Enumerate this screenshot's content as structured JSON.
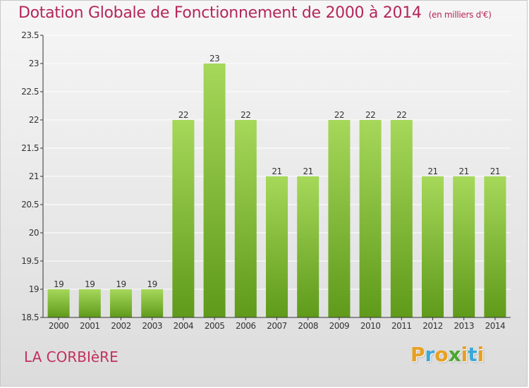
{
  "title": "Dotation Globale de Fonctionnement de 2000 à 2014",
  "subtitle": "(en milliers d'€)",
  "commune": "LA CORBIèRE",
  "logo": {
    "letters": [
      "P",
      "r",
      "o",
      "x",
      "i",
      "t",
      "i"
    ],
    "colors": [
      "#e8a020",
      "#3aa8d8",
      "#e8a020",
      "#4aa830",
      "#e8a020",
      "#3aa8d8",
      "#e8a020"
    ]
  },
  "colors": {
    "bar_light": "#a6d85a",
    "bar_dark": "#5f9a1a",
    "title": "#b5265a",
    "axis": "#333333",
    "grid": "#ffffff"
  },
  "chart_data": {
    "type": "bar",
    "title": "Dotation Globale de Fonctionnement de 2000 à 2014",
    "xlabel": "",
    "ylabel": "",
    "categories": [
      "2000",
      "2001",
      "2002",
      "2003",
      "2004",
      "2005",
      "2006",
      "2007",
      "2008",
      "2009",
      "2010",
      "2011",
      "2012",
      "2013",
      "2014"
    ],
    "values": [
      19,
      19,
      19,
      19,
      22,
      23,
      22,
      21,
      21,
      22,
      22,
      22,
      21,
      21,
      21
    ],
    "labels": [
      "19",
      "19",
      "19",
      "19",
      "22",
      "23",
      "22",
      "21",
      "21",
      "22",
      "22",
      "22",
      "21",
      "21",
      "21"
    ],
    "ylim": [
      18.5,
      23.5
    ],
    "yticks": [
      18.5,
      19,
      19.5,
      20,
      20.5,
      21,
      21.5,
      22,
      22.5,
      23,
      23.5
    ],
    "ytick_labels": [
      "18.5",
      "19",
      "19.5",
      "20",
      "20.5",
      "21",
      "21.5",
      "22",
      "22.5",
      "23",
      "23.5"
    ],
    "grid": true
  }
}
